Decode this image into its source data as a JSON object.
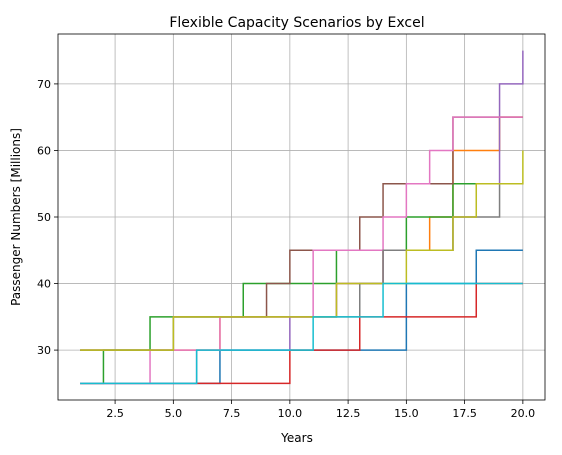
{
  "chart_data": {
    "type": "line",
    "step": "post",
    "title": "Flexible Capacity Scenarios by Excel",
    "xlabel": "Years",
    "ylabel": "Passenger Numbers [Millions]",
    "xlim": [
      0.05,
      20.95
    ],
    "ylim": [
      22.5,
      77.5
    ],
    "xticks": [
      2.5,
      5.0,
      7.5,
      10.0,
      12.5,
      15.0,
      17.5,
      20.0
    ],
    "xtick_labels": [
      "2.5",
      "5.0",
      "7.5",
      "10.0",
      "12.5",
      "15.0",
      "17.5",
      "20.0"
    ],
    "yticks": [
      30,
      40,
      50,
      60,
      70
    ],
    "ytick_labels": [
      "30",
      "40",
      "50",
      "60",
      "70"
    ],
    "grid": true,
    "series": [
      {
        "color": "#1f77b4",
        "x": [
          1,
          2,
          3,
          4,
          5,
          6,
          7,
          8,
          9,
          10,
          11,
          12,
          13,
          14,
          15,
          16,
          17,
          18,
          19,
          20
        ],
        "y": [
          25,
          25,
          25,
          25,
          25,
          25,
          30,
          30,
          30,
          30,
          30,
          30,
          30,
          30,
          40,
          40,
          40,
          45,
          45,
          45
        ]
      },
      {
        "color": "#ff7f0e",
        "x": [
          1,
          2,
          3,
          4,
          5,
          6,
          7,
          8,
          9,
          10,
          11,
          12,
          13,
          14,
          15,
          16,
          17,
          18,
          19,
          20
        ],
        "y": [
          30,
          30,
          30,
          30,
          30,
          30,
          35,
          35,
          35,
          35,
          35,
          40,
          40,
          45,
          45,
          50,
          60,
          60,
          65,
          65
        ]
      },
      {
        "color": "#2ca02c",
        "x": [
          1,
          2,
          3,
          4,
          5,
          6,
          7,
          8,
          9,
          10,
          11,
          12,
          13,
          14,
          15,
          16,
          17,
          18,
          19,
          20
        ],
        "y": [
          25,
          30,
          30,
          35,
          35,
          35,
          35,
          40,
          40,
          40,
          40,
          45,
          45,
          45,
          50,
          50,
          55,
          55,
          55,
          55
        ]
      },
      {
        "color": "#d62728",
        "x": [
          1,
          2,
          3,
          4,
          5,
          6,
          7,
          8,
          9,
          10,
          11,
          12,
          13,
          14,
          15,
          16,
          17,
          18,
          19,
          20
        ],
        "y": [
          25,
          25,
          25,
          25,
          25,
          25,
          25,
          25,
          25,
          30,
          30,
          30,
          35,
          35,
          35,
          35,
          35,
          40,
          40,
          40
        ]
      },
      {
        "color": "#9467bd",
        "x": [
          1,
          2,
          3,
          4,
          5,
          6,
          7,
          8,
          9,
          10,
          11,
          12,
          13,
          14,
          15,
          16,
          17,
          18,
          19,
          20
        ],
        "y": [
          25,
          25,
          25,
          25,
          25,
          30,
          30,
          30,
          30,
          35,
          35,
          40,
          40,
          45,
          45,
          45,
          50,
          55,
          70,
          75
        ]
      },
      {
        "color": "#8c564b",
        "x": [
          1,
          2,
          3,
          4,
          5,
          6,
          7,
          8,
          9,
          10,
          11,
          12,
          13,
          14,
          15,
          16,
          17,
          18,
          19,
          20
        ],
        "y": [
          30,
          30,
          30,
          30,
          35,
          35,
          35,
          35,
          40,
          45,
          45,
          45,
          50,
          55,
          55,
          55,
          65,
          65,
          65,
          65
        ]
      },
      {
        "color": "#e377c2",
        "x": [
          1,
          2,
          3,
          4,
          5,
          6,
          7,
          8,
          9,
          10,
          11,
          12,
          13,
          14,
          15,
          16,
          17,
          18,
          19,
          20
        ],
        "y": [
          25,
          25,
          25,
          30,
          30,
          30,
          35,
          35,
          35,
          35,
          45,
          45,
          45,
          50,
          55,
          60,
          65,
          65,
          65,
          65
        ]
      },
      {
        "color": "#7f7f7f",
        "x": [
          1,
          2,
          3,
          4,
          5,
          6,
          7,
          8,
          9,
          10,
          11,
          12,
          13,
          14,
          15,
          16,
          17,
          18,
          19,
          20
        ],
        "y": [
          30,
          30,
          30,
          30,
          35,
          35,
          35,
          35,
          35,
          35,
          35,
          35,
          40,
          45,
          45,
          45,
          50,
          50,
          55,
          55
        ]
      },
      {
        "color": "#bcbd22",
        "x": [
          1,
          2,
          3,
          4,
          5,
          6,
          7,
          8,
          9,
          10,
          11,
          12,
          13,
          14,
          15,
          16,
          17,
          18,
          19,
          20
        ],
        "y": [
          30,
          30,
          30,
          30,
          35,
          35,
          35,
          35,
          35,
          35,
          35,
          40,
          40,
          40,
          45,
          45,
          50,
          55,
          55,
          60
        ]
      },
      {
        "color": "#17becf",
        "x": [
          1,
          2,
          3,
          4,
          5,
          6,
          7,
          8,
          9,
          10,
          11,
          12,
          13,
          14,
          15,
          16,
          17,
          18,
          19,
          20
        ],
        "y": [
          25,
          25,
          25,
          25,
          25,
          30,
          30,
          30,
          30,
          30,
          35,
          35,
          35,
          40,
          40,
          40,
          40,
          40,
          40,
          40
        ]
      }
    ]
  }
}
